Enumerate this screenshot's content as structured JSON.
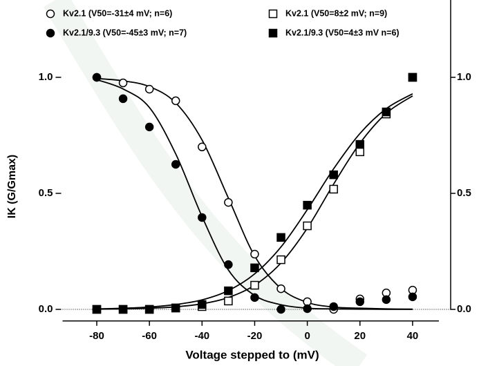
{
  "chart_data": {
    "type": "scatter",
    "x_label": "Voltage stepped to (mV)",
    "y_label": "IK (G/Gmax)",
    "x": [
      -80,
      -70,
      -60,
      -50,
      -40,
      -30,
      -20,
      -10,
      0,
      10,
      20,
      30,
      40
    ],
    "series": [
      {
        "name": "Kv2.1 (V50=-31±4 mV; n=6)",
        "marker": "open-circle",
        "color": "#000000",
        "values": [
          1.0,
          0.976,
          0.949,
          0.899,
          0.7,
          0.461,
          0.238,
          0.089,
          0.033,
          0.0,
          0.045,
          0.071,
          0.083
        ]
      },
      {
        "name": "Kv2.1/9.3 (V50=-45±3 mV; n=7)",
        "marker": "filled-circle",
        "color": "#000000",
        "values": [
          1.0,
          0.908,
          0.786,
          0.625,
          0.396,
          0.193,
          0.051,
          0.0,
          0.003,
          0.012,
          0.033,
          0.042,
          0.054
        ]
      },
      {
        "name": "Kv2.1 (V50=8±2 mV; n=9)",
        "marker": "open-square",
        "color": "#000000",
        "values": [
          0.0,
          0.0,
          0.0,
          0.006,
          0.012,
          0.036,
          0.104,
          0.214,
          0.36,
          0.518,
          0.679,
          0.842,
          1.0
        ]
      },
      {
        "name": "Kv2.1/9.3 (V50=4±3 mV n=6)",
        "marker": "filled-square",
        "color": "#000000",
        "values": [
          0.0,
          0.0,
          0.0,
          0.006,
          0.021,
          0.08,
          0.179,
          0.31,
          0.449,
          0.58,
          0.711,
          0.851,
          1.0
        ]
      }
    ],
    "fits": [
      {
        "values": [
          0.995,
          0.985,
          0.96,
          0.89,
          0.73,
          0.48,
          0.23,
          0.09,
          0.03,
          0.01,
          0.005,
          0.002,
          0.001
        ]
      },
      {
        "values": [
          0.99,
          0.95,
          0.87,
          0.67,
          0.4,
          0.17,
          0.06,
          0.02,
          0.005,
          0.002,
          0.001,
          0.0,
          0.0
        ]
      },
      {
        "values": [
          0.001,
          0.002,
          0.005,
          0.011,
          0.024,
          0.051,
          0.104,
          0.2,
          0.35,
          0.54,
          0.716,
          0.845,
          0.92
        ]
      },
      {
        "values": [
          0.002,
          0.005,
          0.01,
          0.021,
          0.041,
          0.081,
          0.153,
          0.269,
          0.43,
          0.606,
          0.758,
          0.865,
          0.929
        ]
      }
    ],
    "xlim": [
      -93,
      50
    ],
    "ylim": [
      -0.05,
      1.33
    ],
    "xticks": [
      -80,
      -60,
      -40,
      -20,
      0,
      20,
      40
    ],
    "yticks": [
      {
        "value": 0,
        "label": "0.0"
      },
      {
        "value": 0.5,
        "label": "0.5"
      },
      {
        "value": 1,
        "label": "1.0"
      }
    ],
    "zero_line": true
  }
}
